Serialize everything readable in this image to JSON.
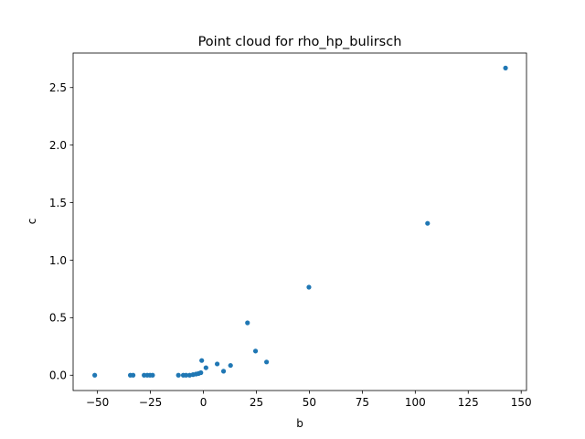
{
  "chart_data": {
    "type": "scatter",
    "title": "Point cloud for rho_hp_bulirsch",
    "xlabel": "b",
    "ylabel": "c",
    "xlim": [
      -61.5,
      152.5
    ],
    "ylim": [
      -0.133,
      2.8
    ],
    "grid": false,
    "x_ticks": [
      -50,
      -25,
      0,
      25,
      50,
      75,
      100,
      125,
      150
    ],
    "x_tick_labels": [
      "−50",
      "−25",
      "0",
      "25",
      "50",
      "75",
      "100",
      "125",
      "150"
    ],
    "y_ticks": [
      0.0,
      0.5,
      1.0,
      1.5,
      2.0,
      2.5
    ],
    "y_tick_labels": [
      "0.0",
      "0.5",
      "1.0",
      "1.5",
      "2.0",
      "2.5"
    ],
    "marker_color": "#1f77b4",
    "points": [
      {
        "x": -51.3,
        "y": 0.0
      },
      {
        "x": -34.5,
        "y": 0.0
      },
      {
        "x": -33.2,
        "y": 0.0
      },
      {
        "x": -28.0,
        "y": 0.0
      },
      {
        "x": -26.5,
        "y": 0.0
      },
      {
        "x": -25.2,
        "y": 0.0
      },
      {
        "x": -24.0,
        "y": 0.0
      },
      {
        "x": -11.8,
        "y": 0.0
      },
      {
        "x": -9.5,
        "y": 0.0
      },
      {
        "x": -8.2,
        "y": 0.0
      },
      {
        "x": -6.5,
        "y": 0.0
      },
      {
        "x": -4.9,
        "y": 0.005
      },
      {
        "x": -3.5,
        "y": 0.01
      },
      {
        "x": -2.3,
        "y": 0.015
      },
      {
        "x": -1.2,
        "y": 0.022
      },
      {
        "x": -0.8,
        "y": 0.128
      },
      {
        "x": 1.2,
        "y": 0.065
      },
      {
        "x": 6.5,
        "y": 0.098
      },
      {
        "x": 9.5,
        "y": 0.035
      },
      {
        "x": 12.8,
        "y": 0.085
      },
      {
        "x": 20.8,
        "y": 0.455
      },
      {
        "x": 24.6,
        "y": 0.21
      },
      {
        "x": 29.8,
        "y": 0.115
      },
      {
        "x": 49.8,
        "y": 0.765
      },
      {
        "x": 105.8,
        "y": 1.32
      },
      {
        "x": 142.6,
        "y": 2.67
      }
    ]
  }
}
